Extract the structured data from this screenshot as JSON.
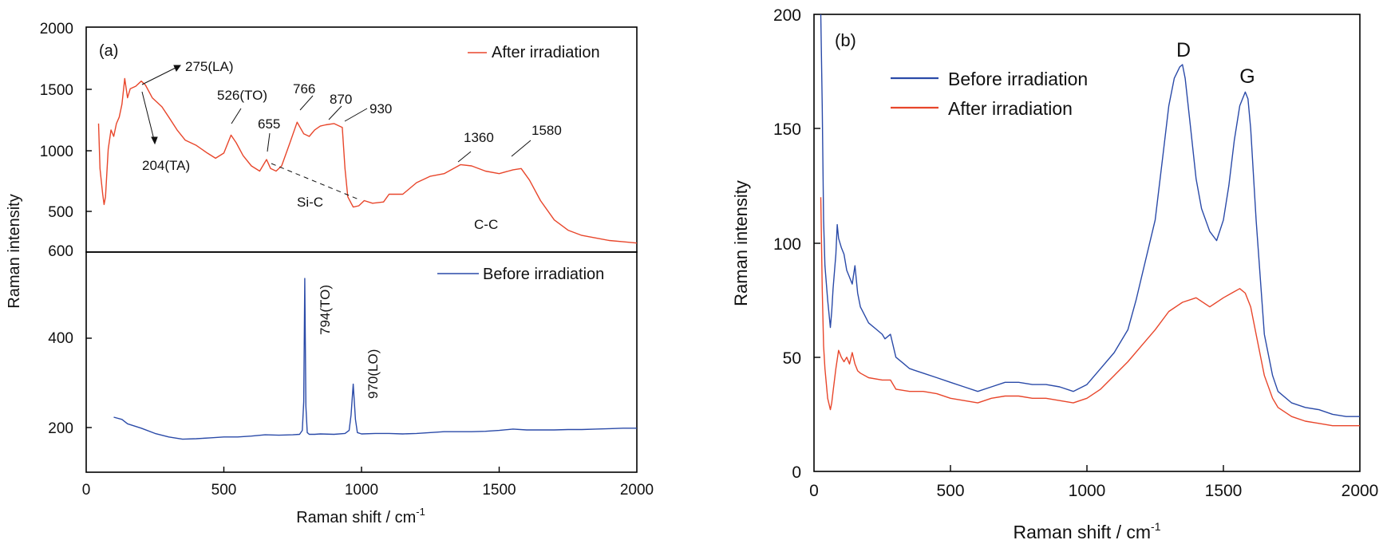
{
  "colors": {
    "after": "#e8462b",
    "before": "#2a4aa8"
  },
  "chart_data": [
    {
      "panel": "(a)",
      "type": "line",
      "xlabel": "Raman shift / cm",
      "xlabel_sup": "-1",
      "ylabel": "Raman intensity",
      "xlim": [
        0,
        2000
      ],
      "xticks": [
        0,
        500,
        1000,
        1500,
        2000
      ],
      "grid": false,
      "subplots": [
        {
          "position": "top",
          "ylim": [
            250,
            2000
          ],
          "yticks": [
            500,
            1000,
            1500,
            2000
          ],
          "series": [
            {
              "name": "After irradiation",
              "color": "#e8462b",
              "x": [
                45,
                50,
                60,
                65,
                70,
                80,
                90,
                100,
                110,
                120,
                130,
                140,
                150,
                160,
                180,
                200,
                215,
                240,
                275,
                300,
                330,
                360,
                400,
                440,
                470,
                500,
                526,
                545,
                570,
                600,
                630,
                655,
                670,
                690,
                710,
                740,
                766,
                790,
                810,
                830,
                850,
                870,
                900,
                920,
                930,
                940,
                950,
                970,
                990,
                1010,
                1040,
                1080,
                1100,
                1150,
                1200,
                1250,
                1300,
                1360,
                1400,
                1450,
                1500,
                1550,
                1580,
                1610,
                1650,
                1700,
                1750,
                1800,
                1850,
                1900,
                1950,
                2000
              ],
              "y": [
                1250,
                900,
                700,
                620,
                680,
                1050,
                1200,
                1150,
                1250,
                1300,
                1400,
                1600,
                1450,
                1520,
                1540,
                1580,
                1550,
                1450,
                1380,
                1300,
                1200,
                1120,
                1080,
                1020,
                980,
                1020,
                1160,
                1100,
                1000,
                920,
                880,
                970,
                900,
                880,
                920,
                1100,
                1260,
                1170,
                1150,
                1200,
                1230,
                1240,
                1250,
                1230,
                1220,
                900,
                680,
                600,
                610,
                650,
                630,
                640,
                700,
                700,
                790,
                840,
                860,
                930,
                920,
                880,
                860,
                890,
                900,
                810,
                650,
                500,
                420,
                380,
                360,
                340,
                330,
                320
              ]
            }
          ],
          "legend": "top-right"
        },
        {
          "position": "bottom",
          "ylim": [
            100,
            600
          ],
          "yticks": [
            200,
            400,
            600
          ],
          "series": [
            {
              "name": "Before irradiation",
              "color": "#2a4aa8",
              "x": [
                100,
                130,
                150,
                200,
                250,
                300,
                350,
                400,
                450,
                500,
                550,
                600,
                650,
                700,
                750,
                775,
                785,
                790,
                794,
                798,
                803,
                810,
                830,
                850,
                900,
                940,
                955,
                962,
                970,
                978,
                985,
                1000,
                1050,
                1100,
                1150,
                1200,
                1250,
                1300,
                1350,
                1400,
                1450,
                1500,
                1550,
                1600,
                1650,
                1700,
                1750,
                1800,
                1850,
                1900,
                1950,
                2000
              ],
              "y": [
                225,
                220,
                210,
                200,
                188,
                180,
                175,
                176,
                178,
                180,
                180,
                182,
                185,
                184,
                185,
                186,
                195,
                260,
                540,
                250,
                190,
                186,
                186,
                187,
                186,
                188,
                195,
                230,
                300,
                220,
                190,
                187,
                188,
                188,
                187,
                188,
                190,
                192,
                192,
                192,
                193,
                195,
                198,
                196,
                196,
                196,
                197,
                197,
                198,
                199,
                200,
                200
              ]
            }
          ],
          "legend": "top-right"
        }
      ],
      "annotations": [
        {
          "text": "275(LA)",
          "x": 275,
          "y": 1570
        },
        {
          "text": "204(TA)",
          "x": 204,
          "y": 1000
        },
        {
          "text": "526(TO)",
          "x": 526,
          "y": 1400
        },
        {
          "text": "655",
          "x": 655,
          "y": 1160
        },
        {
          "text": "766",
          "x": 766,
          "y": 1430
        },
        {
          "text": "870",
          "x": 870,
          "y": 1350
        },
        {
          "text": "930",
          "x": 930,
          "y": 1290
        },
        {
          "text": "1360",
          "x": 1360,
          "y": 1080
        },
        {
          "text": "1580",
          "x": 1580,
          "y": 1130
        },
        {
          "text": "Si-C",
          "x": 760,
          "y": 650
        },
        {
          "text": "C-C",
          "x": 1460,
          "y": 500
        },
        {
          "text": "794(TO)",
          "x": 794,
          "y": 480
        },
        {
          "text": "970(LO)",
          "x": 970,
          "y": 330
        }
      ]
    },
    {
      "panel": "(b)",
      "type": "line",
      "xlabel": "Raman shift / cm",
      "xlabel_sup": "-1",
      "ylabel": "Raman intensity",
      "xlim": [
        0,
        2000
      ],
      "xticks": [
        0,
        500,
        1000,
        1500,
        2000
      ],
      "ylim": [
        0,
        200
      ],
      "yticks": [
        0,
        50,
        100,
        150,
        200
      ],
      "grid": false,
      "legend": "top-left",
      "series": [
        {
          "name": "Before irradiation",
          "color": "#2a4aa8",
          "x": [
            25,
            30,
            35,
            40,
            50,
            60,
            65,
            70,
            80,
            85,
            90,
            100,
            110,
            120,
            130,
            140,
            150,
            160,
            170,
            200,
            230,
            250,
            260,
            280,
            300,
            330,
            350,
            400,
            450,
            500,
            550,
            600,
            650,
            700,
            750,
            800,
            850,
            900,
            950,
            1000,
            1050,
            1100,
            1150,
            1180,
            1200,
            1250,
            1280,
            1300,
            1320,
            1340,
            1350,
            1360,
            1380,
            1400,
            1420,
            1450,
            1475,
            1500,
            1520,
            1540,
            1560,
            1580,
            1590,
            1600,
            1620,
            1650,
            1680,
            1700,
            1750,
            1800,
            1850,
            1900,
            1950,
            2000
          ],
          "y": [
            200,
            160,
            110,
            90,
            75,
            63,
            70,
            80,
            95,
            108,
            102,
            98,
            95,
            88,
            85,
            82,
            90,
            78,
            72,
            65,
            62,
            60,
            58,
            60,
            50,
            47,
            45,
            43,
            41,
            39,
            37,
            35,
            37,
            39,
            39,
            38,
            38,
            37,
            35,
            38,
            45,
            52,
            62,
            75,
            85,
            110,
            140,
            160,
            172,
            177,
            178,
            172,
            150,
            128,
            115,
            105,
            101,
            110,
            125,
            145,
            160,
            166,
            163,
            150,
            110,
            60,
            42,
            35,
            30,
            28,
            27,
            25,
            24,
            24
          ]
        },
        {
          "name": "After irradiation",
          "color": "#e8462b",
          "x": [
            25,
            30,
            35,
            40,
            50,
            60,
            65,
            70,
            80,
            90,
            100,
            110,
            120,
            130,
            140,
            150,
            160,
            170,
            200,
            250,
            280,
            300,
            350,
            400,
            450,
            500,
            550,
            600,
            650,
            700,
            750,
            800,
            850,
            900,
            950,
            1000,
            1050,
            1100,
            1150,
            1200,
            1250,
            1300,
            1350,
            1400,
            1450,
            1500,
            1530,
            1560,
            1580,
            1600,
            1620,
            1650,
            1680,
            1700,
            1750,
            1800,
            1850,
            1900,
            1950,
            2000
          ],
          "y": [
            120,
            80,
            55,
            45,
            32,
            27,
            30,
            35,
            45,
            53,
            50,
            48,
            50,
            47,
            52,
            47,
            44,
            43,
            41,
            40,
            40,
            36,
            35,
            35,
            34,
            32,
            31,
            30,
            32,
            33,
            33,
            32,
            32,
            31,
            30,
            32,
            36,
            42,
            48,
            55,
            62,
            70,
            74,
            76,
            72,
            76,
            78,
            80,
            78,
            72,
            60,
            42,
            32,
            28,
            24,
            22,
            21,
            20,
            20,
            20
          ]
        }
      ],
      "annotations": [
        {
          "text": "D",
          "x": 1350,
          "y": 185
        },
        {
          "text": "G",
          "x": 1590,
          "y": 171
        }
      ]
    }
  ],
  "panel_a": {
    "label": "(a)",
    "ylabel": "Raman intensity",
    "xlabel": "Raman shift / cm",
    "xlabel_sup": "-1",
    "legend_top": "After irradiation",
    "legend_bottom": "Before irradiation",
    "xticks": [
      "0",
      "500",
      "1000",
      "1500",
      "2000"
    ],
    "yticks_top": [
      "500",
      "1000",
      "1500",
      "2000"
    ],
    "yticks_bottom": [
      "200",
      "400",
      "600"
    ]
  },
  "panel_b": {
    "label": "(b)",
    "ylabel": "Raman intensity",
    "xlabel": "Raman shift / cm",
    "xlabel_sup": "-1",
    "legend": [
      "Before irradiation",
      "After irradiation"
    ],
    "xticks": [
      "0",
      "500",
      "1000",
      "1500",
      "2000"
    ],
    "yticks": [
      "0",
      "50",
      "100",
      "150",
      "200"
    ]
  }
}
